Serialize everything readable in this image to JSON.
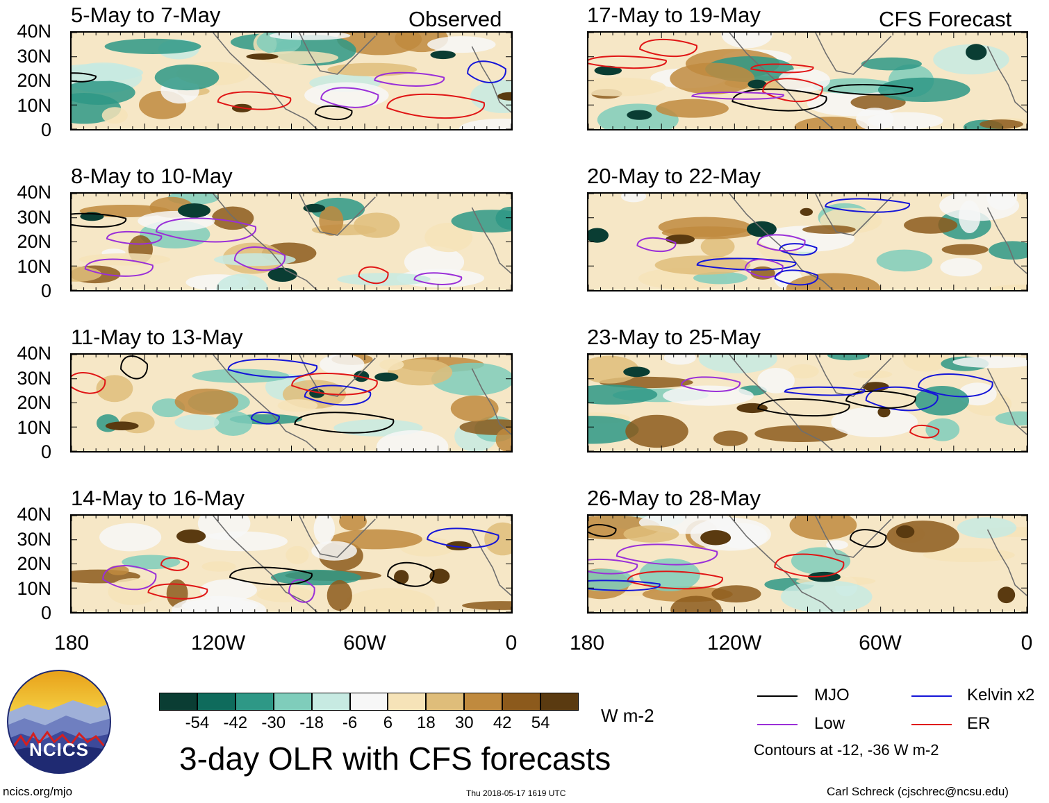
{
  "chart_data": {
    "type": "heatmap",
    "title": "3-day OLR with CFS forecasts",
    "units": "W m-2",
    "x_tick_labels": [
      "180",
      "120W",
      "60W",
      "0"
    ],
    "y_tick_labels": [
      "40N",
      "30N",
      "20N",
      "10N",
      "0"
    ],
    "xlim": [
      -180,
      0
    ],
    "ylim": [
      0,
      40
    ],
    "colorbar": {
      "labels": [
        "-54",
        "-42",
        "-30",
        "-18",
        "-6",
        "6",
        "18",
        "30",
        "42",
        "54"
      ],
      "colors": [
        "#0a3d33",
        "#0f6b5c",
        "#2e9886",
        "#7fcdbb",
        "#c7eae2",
        "#f7f7f7",
        "#f6e3b8",
        "#dfbd7a",
        "#c08a3e",
        "#8c5a1c",
        "#5a3a10"
      ]
    },
    "columns": [
      {
        "tag": "Observed",
        "panels": [
          {
            "title": "5-May to 7-May"
          },
          {
            "title": "8-May to 10-May"
          },
          {
            "title": "11-May to 13-May"
          },
          {
            "title": "14-May to 16-May"
          }
        ]
      },
      {
        "tag": "CFS Forecast",
        "panels": [
          {
            "title": "17-May to 19-May"
          },
          {
            "title": "20-May to 22-May"
          },
          {
            "title": "23-May to 25-May"
          },
          {
            "title": "26-May to 28-May"
          }
        ]
      }
    ],
    "legend": {
      "items": [
        {
          "label": "MJO",
          "color": "#000000"
        },
        {
          "label": "Kelvin x2",
          "color": "#1515d8"
        },
        {
          "label": "Low",
          "color": "#9a2fd8"
        },
        {
          "label": "ER",
          "color": "#e01515"
        }
      ],
      "note": "Contours at -12, -36 W m-2"
    }
  },
  "logo": {
    "text": "NCICS"
  },
  "footer": {
    "left": "ncics.org/mjo",
    "center": "Thu 2018-05-17 1619 UTC",
    "right": "Carl Schreck (cjschrec@ncsu.edu)"
  }
}
